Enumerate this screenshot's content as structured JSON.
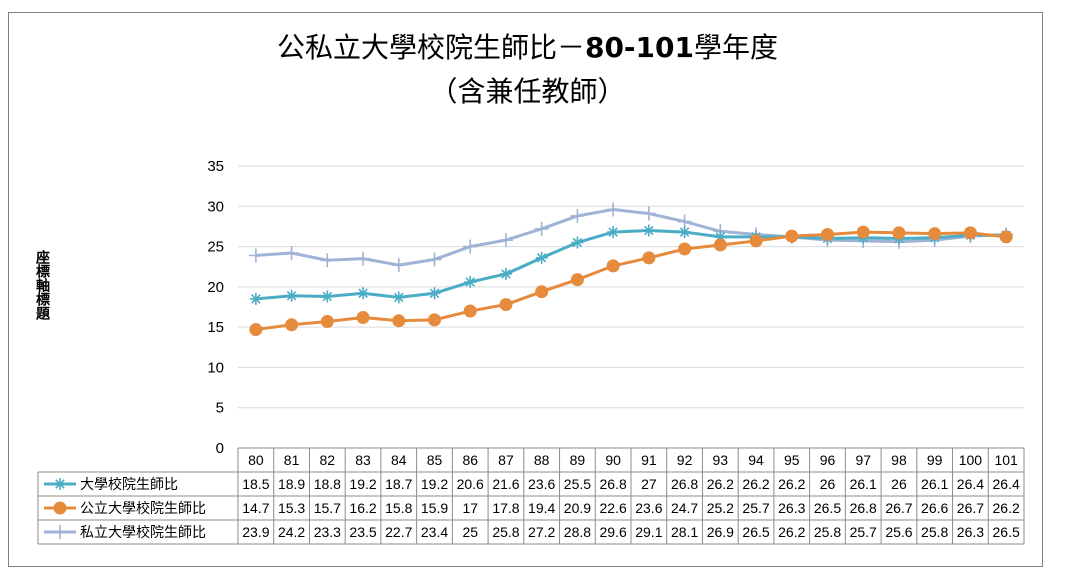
{
  "chart_data": {
    "type": "line",
    "title_main": "公私立大學校院生師比－",
    "title_range": "80-101",
    "title_suffix": "學年度",
    "subtitle": "（含兼任教師）",
    "ylabel": "座標軸標題",
    "ylim": [
      0,
      35
    ],
    "yticks": [
      0,
      5,
      10,
      15,
      20,
      25,
      30,
      35
    ],
    "grid": true,
    "legend": "data-table",
    "categories": [
      "80",
      "81",
      "82",
      "83",
      "84",
      "85",
      "86",
      "87",
      "88",
      "89",
      "90",
      "91",
      "92",
      "93",
      "94",
      "95",
      "96",
      "97",
      "98",
      "99",
      "100",
      "101"
    ],
    "series": [
      {
        "name": "大學校院生師比",
        "color": "#4bacc6",
        "marker": "asterisk",
        "values": [
          18.5,
          18.9,
          18.8,
          19.2,
          18.7,
          19.2,
          20.6,
          21.6,
          23.6,
          25.5,
          26.8,
          27,
          26.8,
          26.2,
          26.2,
          26.2,
          26,
          26.1,
          26,
          26.1,
          26.4,
          26.4
        ]
      },
      {
        "name": "公立大學校院生師比",
        "color": "#e68a3c",
        "marker": "circle",
        "values": [
          14.7,
          15.3,
          15.7,
          16.2,
          15.8,
          15.9,
          17,
          17.8,
          19.4,
          20.9,
          22.6,
          23.6,
          24.7,
          25.2,
          25.7,
          26.3,
          26.5,
          26.8,
          26.7,
          26.6,
          26.7,
          26.2
        ]
      },
      {
        "name": "私立大學校院生師比",
        "color": "#9fb3d6",
        "marker": "plus",
        "values": [
          23.9,
          24.2,
          23.3,
          23.5,
          22.7,
          23.4,
          25,
          25.8,
          27.2,
          28.8,
          29.6,
          29.1,
          28.1,
          26.9,
          26.5,
          26.2,
          25.8,
          25.7,
          25.6,
          25.8,
          26.3,
          26.5
        ]
      }
    ]
  }
}
